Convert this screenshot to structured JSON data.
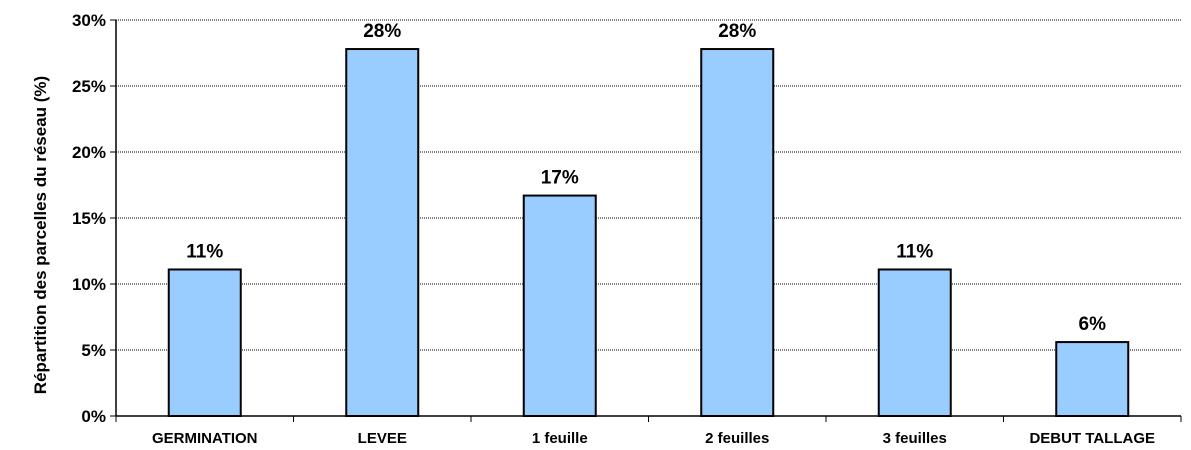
{
  "chart_data": {
    "type": "bar",
    "title": "",
    "xlabel": "",
    "ylabel": "Répartition des parcelles du réseau (%)",
    "ylim": [
      0,
      30
    ],
    "y_ticks": [
      "0%",
      "5%",
      "10%",
      "15%",
      "20%",
      "25%",
      "30%"
    ],
    "categories": [
      "GERMINATION",
      "LEVEE",
      "1 feuille",
      "2 feuilles",
      "3 feuilles",
      "DEBUT TALLAGE"
    ],
    "values": [
      11.1,
      27.8,
      16.7,
      27.8,
      11.1,
      5.6
    ],
    "data_labels": [
      "11%",
      "28%",
      "17%",
      "28%",
      "11%",
      "6%"
    ],
    "grid": true,
    "legend": "none",
    "bar_color": "#99ccff",
    "bar_edge_color": "#000000"
  }
}
